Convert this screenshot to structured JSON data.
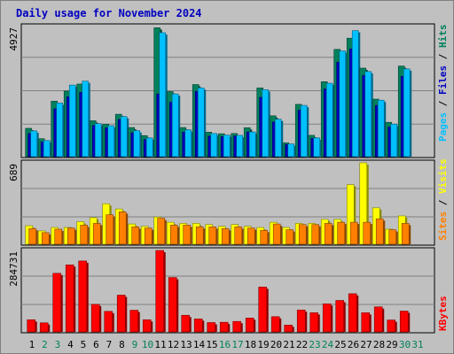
{
  "title": "Daily usage for November 2024",
  "colors": {
    "hits": "#00805c",
    "files": "#0000c0",
    "pages": "#00c0ff",
    "visits": "#ffff00",
    "sites": "#ff8000",
    "kbytes": "#ff0000",
    "weekday_label": "#000000",
    "weekend_label": "#00805c"
  },
  "chart_data": [
    {
      "type": "bar",
      "title": "Hits / Files / Pages",
      "max_label": "4927",
      "ylim": [
        0,
        4927
      ],
      "legend": [
        {
          "name": "Pages",
          "color": "#00c0ff"
        },
        {
          "name": "Files",
          "color": "#0000c0"
        },
        {
          "name": "Hits",
          "color": "#00805c"
        }
      ],
      "legend_separator": "/",
      "categories": [
        "1",
        "2",
        "3",
        "4",
        "5",
        "6",
        "7",
        "8",
        "9",
        "10",
        "11",
        "12",
        "13",
        "14",
        "15",
        "16",
        "17",
        "18",
        "19",
        "20",
        "21",
        "22",
        "23",
        "24",
        "25",
        "26",
        "27",
        "28",
        "29",
        "30",
        "31"
      ],
      "series": [
        {
          "name": "Hits",
          "values": [
            1020,
            620,
            2060,
            2450,
            2720,
            1310,
            1180,
            1560,
            1050,
            740,
            4880,
            2430,
            1050,
            2700,
            870,
            810,
            820,
            1040,
            2570,
            1500,
            460,
            1940,
            750,
            2810,
            4050,
            4480,
            3330,
            2140,
            1250,
            3410,
            null
          ]
        },
        {
          "name": "Files",
          "values": [
            820,
            500,
            1770,
            2230,
            2400,
            1130,
            1040,
            1360,
            850,
            590,
            2340,
            2020,
            870,
            2440,
            720,
            700,
            730,
            880,
            2210,
            1260,
            400,
            1720,
            630,
            2530,
            3560,
            4070,
            3050,
            1900,
            1070,
            3010,
            null
          ]
        },
        {
          "name": "Pages",
          "values": [
            920,
            550,
            1990,
            2680,
            2830,
            1200,
            1120,
            1470,
            930,
            650,
            4690,
            2340,
            960,
            2570,
            820,
            760,
            750,
            880,
            2500,
            1370,
            420,
            1900,
            650,
            2750,
            3990,
            4770,
            3200,
            2100,
            1180,
            3300,
            null
          ]
        }
      ]
    },
    {
      "type": "bar",
      "title": "Visits / Sites",
      "max_label": "689",
      "ylim": [
        0,
        689
      ],
      "legend": [
        {
          "name": "Sites",
          "color": "#ff8000"
        },
        {
          "name": "Visits",
          "color": "#ffff00"
        }
      ],
      "legend_separator": "/",
      "categories": [
        "1",
        "2",
        "3",
        "4",
        "5",
        "6",
        "7",
        "8",
        "9",
        "10",
        "11",
        "12",
        "13",
        "14",
        "15",
        "16",
        "17",
        "18",
        "19",
        "20",
        "21",
        "22",
        "23",
        "24",
        "25",
        "26",
        "27",
        "28",
        "29",
        "30",
        "31"
      ],
      "series": [
        {
          "name": "Visits",
          "values": [
            145,
            100,
            130,
            130,
            180,
            215,
            335,
            290,
            160,
            140,
            220,
            175,
            165,
            165,
            155,
            140,
            155,
            140,
            130,
            175,
            130,
            165,
            165,
            200,
            200,
            500,
            689,
            300,
            115,
            230,
            null
          ]
        },
        {
          "name": "Sites",
          "values": [
            120,
            85,
            115,
            125,
            150,
            165,
            240,
            265,
            135,
            125,
            210,
            150,
            150,
            135,
            135,
            120,
            135,
            125,
            105,
            160,
            110,
            155,
            155,
            165,
            175,
            175,
            175,
            205,
            110,
            165,
            null
          ]
        }
      ]
    },
    {
      "type": "bar",
      "title": "KBytes",
      "max_label": "284731",
      "ylim": [
        0,
        284731
      ],
      "legend": [
        {
          "name": "KBytes",
          "color": "#ff0000"
        }
      ],
      "legend_separator": "",
      "categories": [
        "1",
        "2",
        "3",
        "4",
        "5",
        "6",
        "7",
        "8",
        "9",
        "10",
        "11",
        "12",
        "13",
        "14",
        "15",
        "16",
        "17",
        "18",
        "19",
        "20",
        "21",
        "22",
        "23",
        "24",
        "25",
        "26",
        "27",
        "28",
        "29",
        "30",
        "31"
      ],
      "series": [
        {
          "name": "KBytes",
          "values": [
            37000,
            26000,
            203000,
            233000,
            247000,
            92000,
            67000,
            125000,
            71000,
            37000,
            284731,
            188000,
            53000,
            40000,
            27000,
            28000,
            31000,
            43000,
            154000,
            48000,
            18000,
            72000,
            62000,
            94000,
            106000,
            130000,
            62000,
            83000,
            36000,
            68000,
            null
          ]
        }
      ]
    }
  ],
  "x_labels": [
    {
      "text": "1",
      "weekend": false
    },
    {
      "text": "2",
      "weekend": true
    },
    {
      "text": "3",
      "weekend": true
    },
    {
      "text": "4",
      "weekend": false
    },
    {
      "text": "5",
      "weekend": false
    },
    {
      "text": "6",
      "weekend": false
    },
    {
      "text": "7",
      "weekend": false
    },
    {
      "text": "8",
      "weekend": false
    },
    {
      "text": "9",
      "weekend": true
    },
    {
      "text": "10",
      "weekend": true
    },
    {
      "text": "11",
      "weekend": false
    },
    {
      "text": "12",
      "weekend": false
    },
    {
      "text": "13",
      "weekend": false
    },
    {
      "text": "14",
      "weekend": false
    },
    {
      "text": "15",
      "weekend": false
    },
    {
      "text": "16",
      "weekend": true
    },
    {
      "text": "17",
      "weekend": true
    },
    {
      "text": "18",
      "weekend": false
    },
    {
      "text": "19",
      "weekend": false
    },
    {
      "text": "20",
      "weekend": false
    },
    {
      "text": "21",
      "weekend": false
    },
    {
      "text": "22",
      "weekend": false
    },
    {
      "text": "23",
      "weekend": true
    },
    {
      "text": "24",
      "weekend": true
    },
    {
      "text": "25",
      "weekend": false
    },
    {
      "text": "26",
      "weekend": false
    },
    {
      "text": "27",
      "weekend": false
    },
    {
      "text": "28",
      "weekend": false
    },
    {
      "text": "29",
      "weekend": false
    },
    {
      "text": "30",
      "weekend": true
    },
    {
      "text": "31",
      "weekend": true
    }
  ]
}
